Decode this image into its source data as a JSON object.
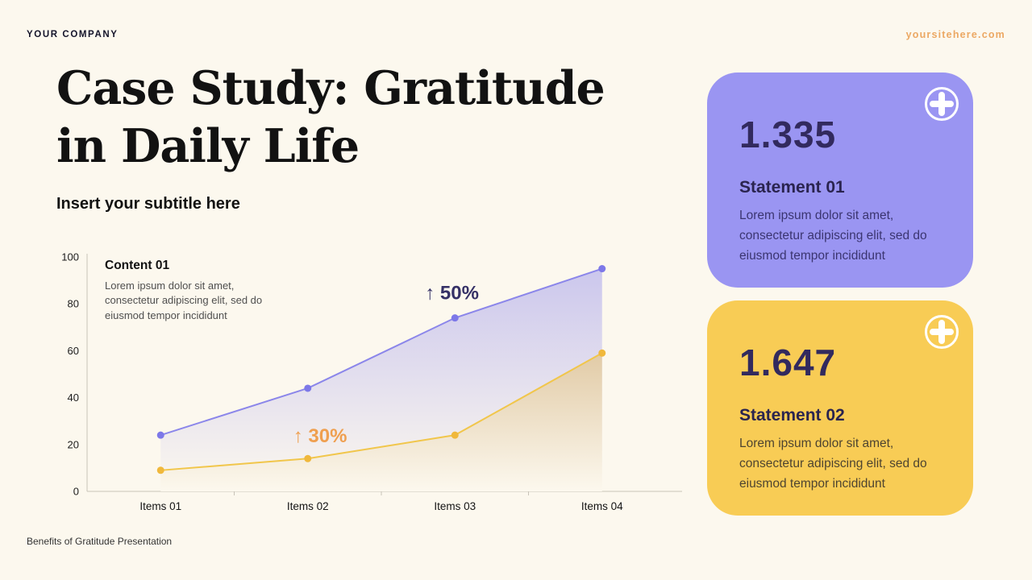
{
  "page": {
    "background": "#fcf8ee"
  },
  "header": {
    "company": "YOUR COMPANY",
    "website": "yoursitehere.com",
    "website_color": "#eca863"
  },
  "hero": {
    "title_line1": "Case Study: Gratitude",
    "title_line2": "in Daily Life",
    "subtitle": "Insert your subtitle here"
  },
  "chart": {
    "content": {
      "title": "Content 01",
      "body": "Lorem ipsum dolor sit amet, consectetur adipiscing elit, sed do eiusmod tempor incididunt"
    }
  },
  "chart_data": {
    "type": "area",
    "title": "",
    "xlabel": "",
    "ylabel": "",
    "categories": [
      "Items 01",
      "Items 02",
      "Items 03",
      "Items 04"
    ],
    "series": [
      {
        "name": "purple-series",
        "color": "#8b86ea",
        "point_color": "#7d78e8",
        "fill_from": "rgba(144,139,236,0.45)",
        "fill_to": "rgba(144,139,236,0)",
        "values": [
          24,
          44,
          74,
          95
        ]
      },
      {
        "name": "yellow-series",
        "color": "#f1c64b",
        "point_color": "#f0b83c",
        "fill_from": "rgba(199,158,95,0.5)",
        "fill_to": "rgba(199,158,95,0)",
        "values": [
          9,
          14,
          24,
          59
        ]
      }
    ],
    "ylim": [
      0,
      100
    ],
    "yticks": [
      0,
      20,
      40,
      60,
      80,
      100
    ],
    "grid": false,
    "legend": "none",
    "annotations": [
      {
        "text": "↑ 50%",
        "color": "#353066",
        "x_frac": 0.62,
        "value": 82
      },
      {
        "text": "↑ 30%",
        "color": "#ef9f4f",
        "x_frac": 0.396,
        "value": 21
      }
    ]
  },
  "cards": [
    {
      "bg": "#9a95f2",
      "value": "1.335",
      "title": "Statement 01",
      "body": "Lorem ipsum dolor sit amet, consectetur adipiscing elit, sed do eiusmod tempor incididunt"
    },
    {
      "bg": "#f8cc55",
      "value": "1.647",
      "title": "Statement 02",
      "body": "Lorem ipsum dolor sit amet, consectetur adipiscing elit, sed do eiusmod tempor incididunt"
    }
  ],
  "footer": {
    "text": "Benefits of Gratitude Presentation"
  }
}
